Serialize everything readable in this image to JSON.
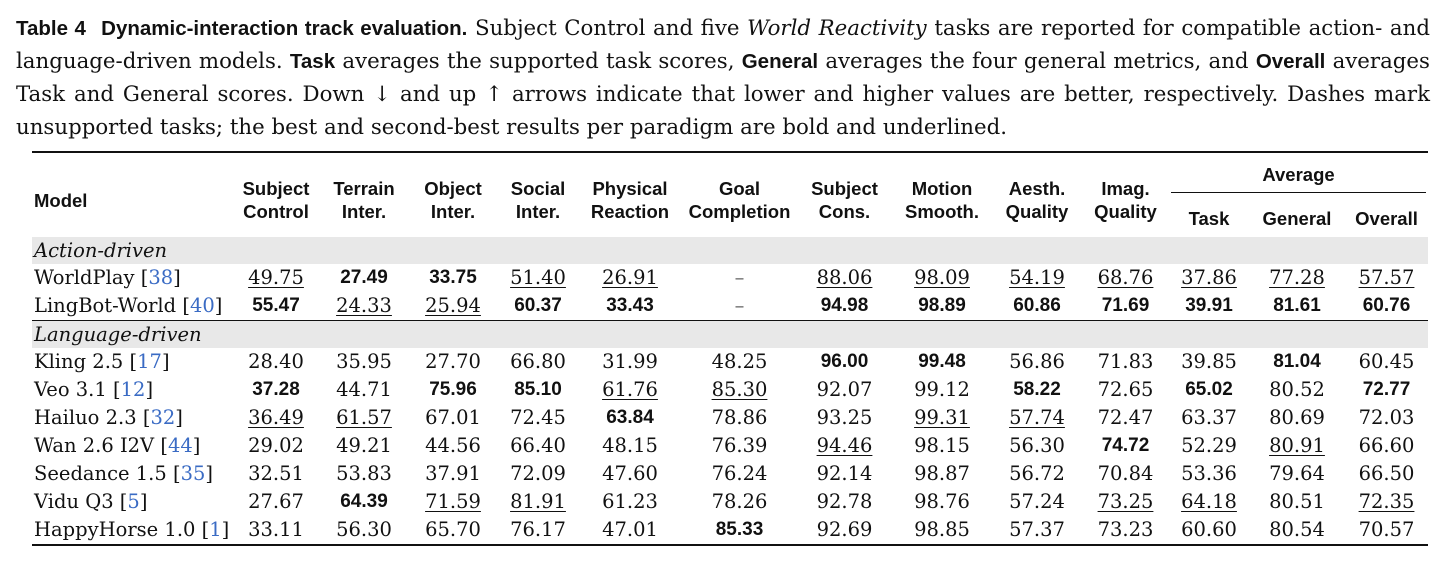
{
  "caption": {
    "label": "Table 4",
    "title": "Dynamic-interaction track evaluation.",
    "s1": "Subject Control and five",
    "s1_em": "World Reactivity",
    "s1b": "tasks are reported for compatible action- and language-driven models.",
    "task_word": "Task",
    "s2": "averages the supported task scores,",
    "general_word": "General",
    "s3": "averages the four general metrics, and",
    "overall_word": "Overall",
    "s4": "averages Task and General scores. Down ↓ and up ↑ arrows indicate that lower and higher values are better, respectively. Dashes mark unsupported tasks; the best and second-best results per paradigm are bold and underlined."
  },
  "headers": {
    "model": "Model",
    "subject_control": [
      "Subject",
      "Control"
    ],
    "terrain_inter": [
      "Terrain",
      "Inter."
    ],
    "object_inter": [
      "Object",
      "Inter."
    ],
    "social_inter": [
      "Social",
      "Inter."
    ],
    "physical_reaction": [
      "Physical",
      "Reaction"
    ],
    "goal_completion": [
      "Goal",
      "Completion"
    ],
    "subject_cons": [
      "Subject",
      "Cons."
    ],
    "motion_smooth": [
      "Motion",
      "Smooth."
    ],
    "aesth_quality": [
      "Aesth.",
      "Quality"
    ],
    "imag_quality": [
      "Imag.",
      "Quality"
    ],
    "average": "Average",
    "task": "Task",
    "general": "General",
    "overall": "Overall"
  },
  "groups": [
    {
      "name": "Action-driven",
      "rows": [
        {
          "model": "WorldPlay",
          "ref": "38",
          "cells": [
            {
              "v": "49.75",
              "s": "u"
            },
            {
              "v": "27.49",
              "s": "b"
            },
            {
              "v": "33.75",
              "s": "b"
            },
            {
              "v": "51.40",
              "s": "u"
            },
            {
              "v": "26.91",
              "s": "u"
            },
            {
              "v": "–",
              "s": "dash"
            },
            {
              "v": "88.06",
              "s": "u"
            },
            {
              "v": "98.09",
              "s": "u"
            },
            {
              "v": "54.19",
              "s": "u"
            },
            {
              "v": "68.76",
              "s": "u"
            },
            {
              "v": "37.86",
              "s": "u"
            },
            {
              "v": "77.28",
              "s": "u"
            },
            {
              "v": "57.57",
              "s": "u"
            }
          ]
        },
        {
          "model": "LingBot-World",
          "ref": "40",
          "cells": [
            {
              "v": "55.47",
              "s": "b"
            },
            {
              "v": "24.33",
              "s": "u"
            },
            {
              "v": "25.94",
              "s": "u"
            },
            {
              "v": "60.37",
              "s": "b"
            },
            {
              "v": "33.43",
              "s": "b"
            },
            {
              "v": "–",
              "s": "dash"
            },
            {
              "v": "94.98",
              "s": "b"
            },
            {
              "v": "98.89",
              "s": "b"
            },
            {
              "v": "60.86",
              "s": "b"
            },
            {
              "v": "71.69",
              "s": "b"
            },
            {
              "v": "39.91",
              "s": "b"
            },
            {
              "v": "81.61",
              "s": "b"
            },
            {
              "v": "60.76",
              "s": "b"
            }
          ]
        }
      ]
    },
    {
      "name": "Language-driven",
      "rows": [
        {
          "model": "Kling 2.5",
          "ref": "17",
          "cells": [
            {
              "v": "28.40",
              "s": ""
            },
            {
              "v": "35.95",
              "s": ""
            },
            {
              "v": "27.70",
              "s": ""
            },
            {
              "v": "66.80",
              "s": ""
            },
            {
              "v": "31.99",
              "s": ""
            },
            {
              "v": "48.25",
              "s": ""
            },
            {
              "v": "96.00",
              "s": "b"
            },
            {
              "v": "99.48",
              "s": "b"
            },
            {
              "v": "56.86",
              "s": ""
            },
            {
              "v": "71.83",
              "s": ""
            },
            {
              "v": "39.85",
              "s": ""
            },
            {
              "v": "81.04",
              "s": "b"
            },
            {
              "v": "60.45",
              "s": ""
            }
          ]
        },
        {
          "model": "Veo 3.1",
          "ref": "12",
          "cells": [
            {
              "v": "37.28",
              "s": "b"
            },
            {
              "v": "44.71",
              "s": ""
            },
            {
              "v": "75.96",
              "s": "b"
            },
            {
              "v": "85.10",
              "s": "b"
            },
            {
              "v": "61.76",
              "s": "u"
            },
            {
              "v": "85.30",
              "s": "u"
            },
            {
              "v": "92.07",
              "s": ""
            },
            {
              "v": "99.12",
              "s": ""
            },
            {
              "v": "58.22",
              "s": "b"
            },
            {
              "v": "72.65",
              "s": ""
            },
            {
              "v": "65.02",
              "s": "b"
            },
            {
              "v": "80.52",
              "s": ""
            },
            {
              "v": "72.77",
              "s": "b"
            }
          ]
        },
        {
          "model": "Hailuo 2.3",
          "ref": "32",
          "cells": [
            {
              "v": "36.49",
              "s": "u"
            },
            {
              "v": "61.57",
              "s": "u"
            },
            {
              "v": "67.01",
              "s": ""
            },
            {
              "v": "72.45",
              "s": ""
            },
            {
              "v": "63.84",
              "s": "b"
            },
            {
              "v": "78.86",
              "s": ""
            },
            {
              "v": "93.25",
              "s": ""
            },
            {
              "v": "99.31",
              "s": "u"
            },
            {
              "v": "57.74",
              "s": "u"
            },
            {
              "v": "72.47",
              "s": ""
            },
            {
              "v": "63.37",
              "s": ""
            },
            {
              "v": "80.69",
              "s": ""
            },
            {
              "v": "72.03",
              "s": ""
            }
          ]
        },
        {
          "model": "Wan 2.6 I2V",
          "ref": "44",
          "cells": [
            {
              "v": "29.02",
              "s": ""
            },
            {
              "v": "49.21",
              "s": ""
            },
            {
              "v": "44.56",
              "s": ""
            },
            {
              "v": "66.40",
              "s": ""
            },
            {
              "v": "48.15",
              "s": ""
            },
            {
              "v": "76.39",
              "s": ""
            },
            {
              "v": "94.46",
              "s": "u"
            },
            {
              "v": "98.15",
              "s": ""
            },
            {
              "v": "56.30",
              "s": ""
            },
            {
              "v": "74.72",
              "s": "b"
            },
            {
              "v": "52.29",
              "s": ""
            },
            {
              "v": "80.91",
              "s": "u"
            },
            {
              "v": "66.60",
              "s": ""
            }
          ]
        },
        {
          "model": "Seedance 1.5",
          "ref": "35",
          "cells": [
            {
              "v": "32.51",
              "s": ""
            },
            {
              "v": "53.83",
              "s": ""
            },
            {
              "v": "37.91",
              "s": ""
            },
            {
              "v": "72.09",
              "s": ""
            },
            {
              "v": "47.60",
              "s": ""
            },
            {
              "v": "76.24",
              "s": ""
            },
            {
              "v": "92.14",
              "s": ""
            },
            {
              "v": "98.87",
              "s": ""
            },
            {
              "v": "56.72",
              "s": ""
            },
            {
              "v": "70.84",
              "s": ""
            },
            {
              "v": "53.36",
              "s": ""
            },
            {
              "v": "79.64",
              "s": ""
            },
            {
              "v": "66.50",
              "s": ""
            }
          ]
        },
        {
          "model": "Vidu Q3",
          "ref": "5",
          "cells": [
            {
              "v": "27.67",
              "s": ""
            },
            {
              "v": "64.39",
              "s": "b"
            },
            {
              "v": "71.59",
              "s": "u"
            },
            {
              "v": "81.91",
              "s": "u"
            },
            {
              "v": "61.23",
              "s": ""
            },
            {
              "v": "78.26",
              "s": ""
            },
            {
              "v": "92.78",
              "s": ""
            },
            {
              "v": "98.76",
              "s": ""
            },
            {
              "v": "57.24",
              "s": ""
            },
            {
              "v": "73.25",
              "s": "u"
            },
            {
              "v": "64.18",
              "s": "u"
            },
            {
              "v": "80.51",
              "s": ""
            },
            {
              "v": "72.35",
              "s": "u"
            }
          ]
        },
        {
          "model": "HappyHorse 1.0",
          "ref": "1",
          "cells": [
            {
              "v": "33.11",
              "s": ""
            },
            {
              "v": "56.30",
              "s": ""
            },
            {
              "v": "65.70",
              "s": ""
            },
            {
              "v": "76.17",
              "s": ""
            },
            {
              "v": "47.01",
              "s": ""
            },
            {
              "v": "85.33",
              "s": "b"
            },
            {
              "v": "92.69",
              "s": ""
            },
            {
              "v": "98.85",
              "s": ""
            },
            {
              "v": "57.37",
              "s": ""
            },
            {
              "v": "73.23",
              "s": ""
            },
            {
              "v": "60.60",
              "s": ""
            },
            {
              "v": "80.54",
              "s": ""
            },
            {
              "v": "70.57",
              "s": ""
            }
          ]
        }
      ]
    }
  ]
}
